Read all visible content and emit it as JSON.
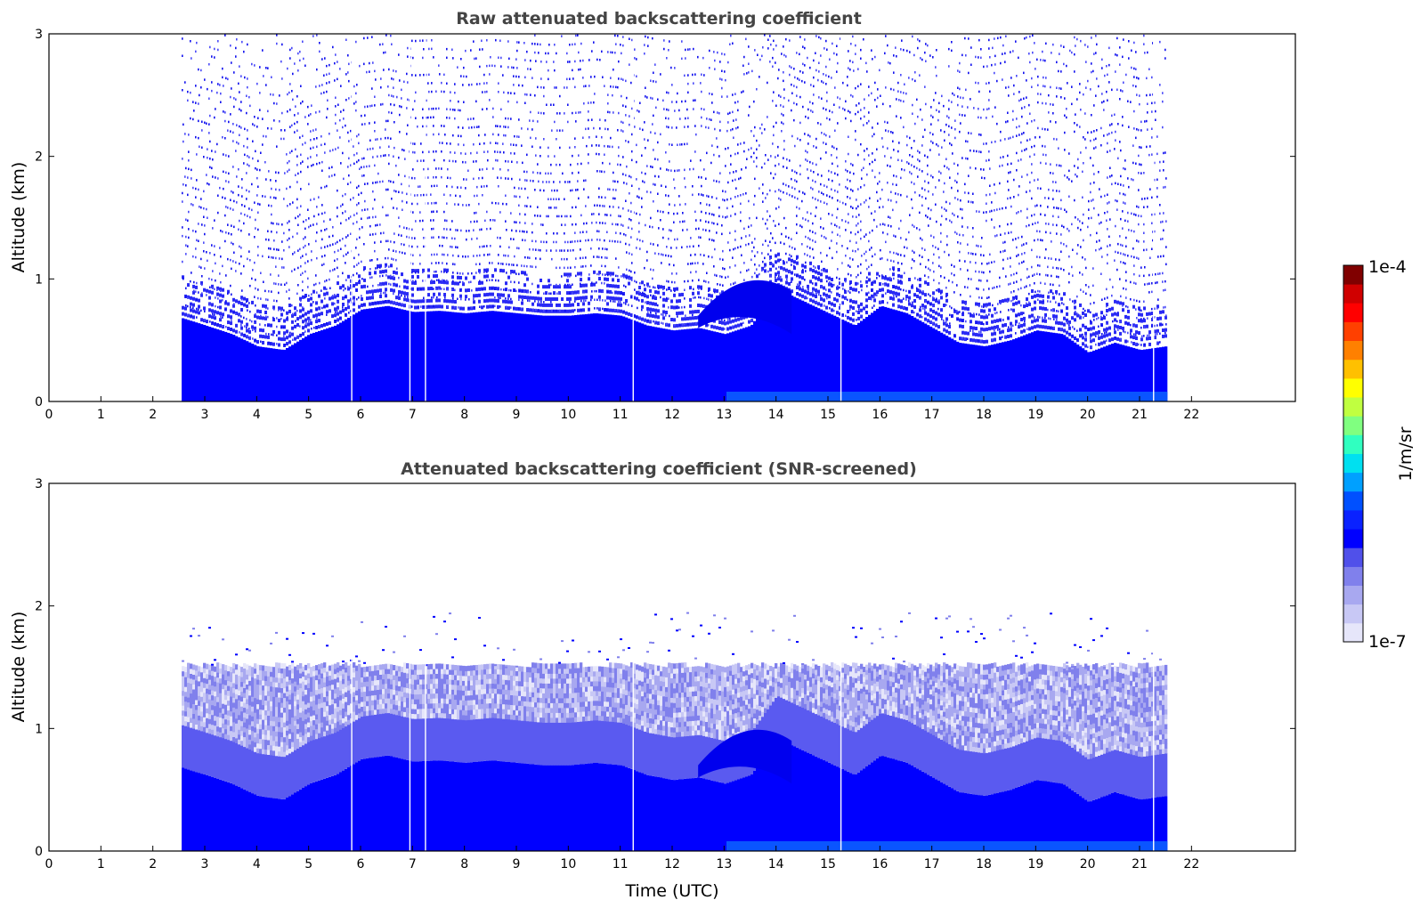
{
  "chart_data": [
    {
      "type": "heatmap",
      "title": "Raw attenuated backscattering coefficient",
      "xlabel": "",
      "ylabel": "Altitude (km)",
      "xlim": [
        0,
        24
      ],
      "ylim": [
        0,
        3
      ],
      "xticks": [
        "0",
        "1",
        "2",
        "3",
        "4",
        "5",
        "6",
        "7",
        "8",
        "9",
        "10",
        "11",
        "12",
        "13",
        "14",
        "15",
        "16",
        "17",
        "18",
        "19",
        "20",
        "21",
        "22"
      ],
      "yticks": [
        "0",
        "1",
        "2",
        "3"
      ],
      "data_time_range": [
        2.55,
        21.5
      ],
      "data_gaps_utc": [
        5.83,
        6.95,
        7.25,
        11.25,
        15.25,
        21.27
      ],
      "boundary_layer_top_km": [
        [
          2.55,
          0.68
        ],
        [
          3,
          0.62
        ],
        [
          3.5,
          0.55
        ],
        [
          4,
          0.45
        ],
        [
          4.5,
          0.42
        ],
        [
          5,
          0.55
        ],
        [
          5.5,
          0.62
        ],
        [
          6,
          0.75
        ],
        [
          6.5,
          0.78
        ],
        [
          7,
          0.73
        ],
        [
          7.5,
          0.74
        ],
        [
          8,
          0.72
        ],
        [
          8.5,
          0.74
        ],
        [
          9,
          0.72
        ],
        [
          9.5,
          0.7
        ],
        [
          10,
          0.7
        ],
        [
          10.5,
          0.72
        ],
        [
          11,
          0.7
        ],
        [
          11.5,
          0.62
        ],
        [
          12,
          0.58
        ],
        [
          12.5,
          0.6
        ],
        [
          13,
          0.55
        ],
        [
          13.5,
          0.62
        ],
        [
          14,
          0.92
        ],
        [
          14.5,
          0.82
        ],
        [
          15,
          0.72
        ],
        [
          15.5,
          0.62
        ],
        [
          16,
          0.78
        ],
        [
          16.5,
          0.72
        ],
        [
          17,
          0.6
        ],
        [
          17.5,
          0.48
        ],
        [
          18,
          0.45
        ],
        [
          18.5,
          0.5
        ],
        [
          19,
          0.58
        ],
        [
          19.5,
          0.55
        ],
        [
          20,
          0.4
        ],
        [
          20.5,
          0.48
        ],
        [
          21,
          0.42
        ],
        [
          21.5,
          0.45
        ]
      ],
      "elevated_layer_km": {
        "time_range": [
          12.5,
          14.3
        ],
        "altitude_range": [
          0.6,
          1.15
        ]
      },
      "screened": false
    },
    {
      "type": "heatmap",
      "title": "Attenuated backscattering coefficient (SNR-screened)",
      "xlabel": "Time (UTC)",
      "ylabel": "Altitude (km)",
      "xlim": [
        0,
        24
      ],
      "ylim": [
        0,
        3
      ],
      "xticks": [
        "0",
        "1",
        "2",
        "3",
        "4",
        "5",
        "6",
        "7",
        "8",
        "9",
        "10",
        "11",
        "12",
        "13",
        "14",
        "15",
        "16",
        "17",
        "18",
        "19",
        "20",
        "21",
        "22"
      ],
      "yticks": [
        "0",
        "1",
        "2",
        "3"
      ],
      "data_time_range": [
        2.55,
        21.5
      ],
      "data_gaps_utc": [
        5.83,
        6.95,
        7.25,
        11.25,
        15.25,
        21.27
      ],
      "snr_cutoff_km": 1.5,
      "screened": true
    }
  ],
  "colorbar": {
    "label": "1/m/sr",
    "max_label": "1e-4",
    "min_label": "1e-7",
    "range": [
      1e-07,
      0.0001
    ],
    "colormap": "jet with white-to-blue lower segment",
    "colors": [
      "#e6e6fa",
      "#c8c8f5",
      "#a8a8f0",
      "#8080ec",
      "#5050ea",
      "#0000ff",
      "#0a22ff",
      "#0050ff",
      "#00a0ff",
      "#00e0f0",
      "#30ffc0",
      "#80ff80",
      "#c0ff40",
      "#ffff00",
      "#ffc000",
      "#ff8000",
      "#ff4000",
      "#ff0000",
      "#d00000",
      "#800000"
    ]
  }
}
